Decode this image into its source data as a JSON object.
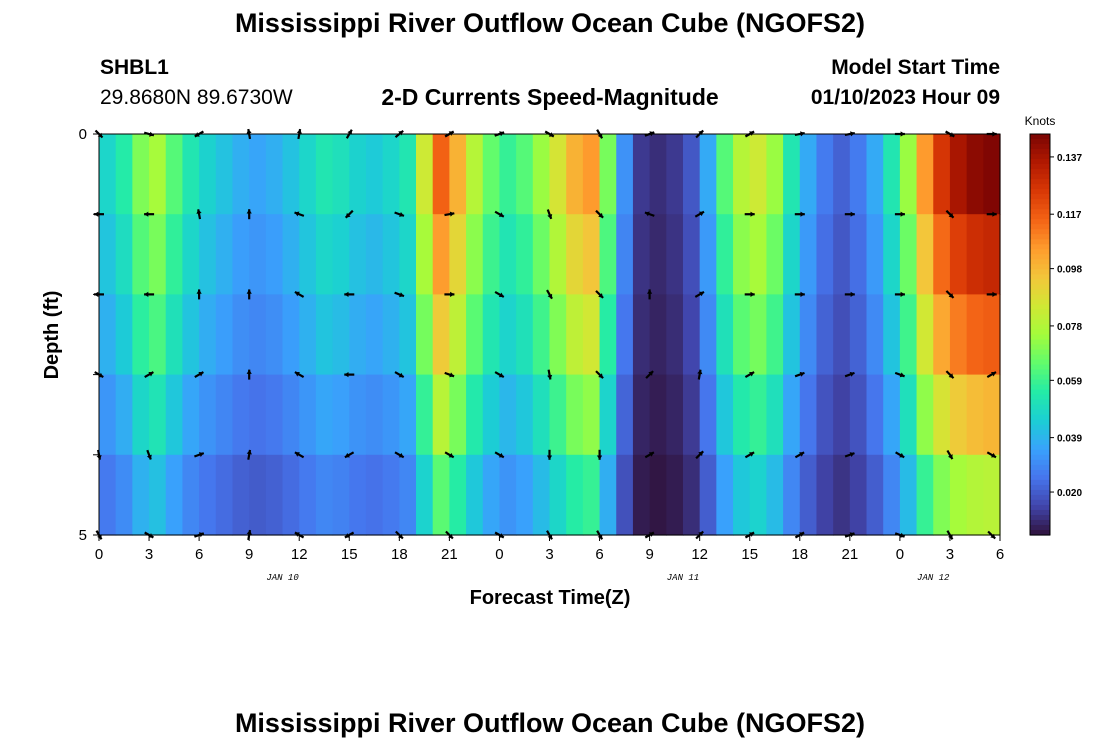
{
  "header": {
    "title": "Mississippi River Outflow Ocean Cube (NGOFS2)",
    "station_id": "SHBL1",
    "station_coords": "29.8680N  89.6730W",
    "product": "2-D Currents Speed-Magnitude",
    "model_start_label": "Model Start Time",
    "model_start_value": "01/10/2023 Hour 09"
  },
  "footer": {
    "title": "Mississippi River Outflow Ocean Cube (NGOFS2)"
  },
  "chart_data": {
    "type": "heatmap",
    "xlabel": "Forecast Time(Z)",
    "ylabel": "Depth (ft)",
    "x_tick_labels": [
      "0",
      "3",
      "6",
      "9",
      "12",
      "15",
      "18",
      "21",
      "0",
      "3",
      "6",
      "9",
      "12",
      "15",
      "18",
      "21",
      "0",
      "3",
      "6"
    ],
    "x_date_labels": [
      {
        "label": "JAN 10",
        "at_hour": 11
      },
      {
        "label": "JAN 11",
        "at_hour": 35
      },
      {
        "label": "JAN 12",
        "at_hour": 50
      }
    ],
    "xlim_hours": [
      0,
      54
    ],
    "y_tick_labels": [
      {
        "value": 0,
        "label": "0"
      },
      {
        "value": 1,
        "label": ""
      },
      {
        "value": 2,
        "label": ""
      },
      {
        "value": 3,
        "label": ""
      },
      {
        "value": 4,
        "label": ""
      },
      {
        "value": 5,
        "label": "5"
      }
    ],
    "ylim": [
      0,
      5
    ],
    "colorbar": {
      "unit": "Knots",
      "ticks": [
        0.137,
        0.117,
        0.098,
        0.078,
        0.059,
        0.039,
        0.02
      ],
      "range": [
        0.005,
        0.145
      ],
      "colors": [
        "#30123b",
        "#4145ab",
        "#4675ed",
        "#39a2fc",
        "#1bcfd4",
        "#24eca6",
        "#61fc6c",
        "#a4fc3b",
        "#d1e834",
        "#f3c63a",
        "#fe9b2d",
        "#f36315",
        "#d93806",
        "#b11901",
        "#7a0403"
      ]
    },
    "layer_depths": [
      0.5,
      1.5,
      2.5,
      3.5,
      4.5
    ],
    "speed_profile": [
      {
        "hour": 0,
        "speed": 0.045
      },
      {
        "hour": 1,
        "speed": 0.052
      },
      {
        "hour": 2,
        "speed": 0.066
      },
      {
        "hour": 3,
        "speed": 0.072
      },
      {
        "hour": 4,
        "speed": 0.06
      },
      {
        "hour": 5,
        "speed": 0.05
      },
      {
        "hour": 6,
        "speed": 0.044
      },
      {
        "hour": 7,
        "speed": 0.04
      },
      {
        "hour": 8,
        "speed": 0.036
      },
      {
        "hour": 9,
        "speed": 0.034
      },
      {
        "hour": 10,
        "speed": 0.036
      },
      {
        "hour": 11,
        "speed": 0.04
      },
      {
        "hour": 12,
        "speed": 0.045
      },
      {
        "hour": 13,
        "speed": 0.05
      },
      {
        "hour": 14,
        "speed": 0.048
      },
      {
        "hour": 15,
        "speed": 0.044
      },
      {
        "hour": 16,
        "speed": 0.042
      },
      {
        "hour": 17,
        "speed": 0.045
      },
      {
        "hour": 18,
        "speed": 0.05
      },
      {
        "hour": 19,
        "speed": 0.08
      },
      {
        "hour": 20,
        "speed": 0.11
      },
      {
        "hour": 21,
        "speed": 0.095
      },
      {
        "hour": 22,
        "speed": 0.075
      },
      {
        "hour": 23,
        "speed": 0.062
      },
      {
        "hour": 24,
        "speed": 0.055
      },
      {
        "hour": 25,
        "speed": 0.06
      },
      {
        "hour": 26,
        "speed": 0.07
      },
      {
        "hour": 27,
        "speed": 0.082
      },
      {
        "hour": 28,
        "speed": 0.095
      },
      {
        "hour": 29,
        "speed": 0.1
      },
      {
        "hour": 30,
        "speed": 0.065
      },
      {
        "hour": 31,
        "speed": 0.03
      },
      {
        "hour": 32,
        "speed": 0.012
      },
      {
        "hour": 33,
        "speed": 0.01
      },
      {
        "hour": 34,
        "speed": 0.012
      },
      {
        "hour": 35,
        "speed": 0.018
      },
      {
        "hour": 36,
        "speed": 0.035
      },
      {
        "hour": 37,
        "speed": 0.06
      },
      {
        "hour": 38,
        "speed": 0.075
      },
      {
        "hour": 39,
        "speed": 0.08
      },
      {
        "hour": 40,
        "speed": 0.07
      },
      {
        "hour": 41,
        "speed": 0.05
      },
      {
        "hour": 42,
        "speed": 0.035
      },
      {
        "hour": 43,
        "speed": 0.025
      },
      {
        "hour": 44,
        "speed": 0.02
      },
      {
        "hour": 45,
        "speed": 0.025
      },
      {
        "hour": 46,
        "speed": 0.035
      },
      {
        "hour": 47,
        "speed": 0.05
      },
      {
        "hour": 48,
        "speed": 0.07
      },
      {
        "hour": 49,
        "speed": 0.1
      },
      {
        "hour": 50,
        "speed": 0.12
      },
      {
        "hour": 51,
        "speed": 0.13
      },
      {
        "hour": 52,
        "speed": 0.135
      },
      {
        "hour": 53,
        "speed": 0.137
      },
      {
        "hour": 54,
        "speed": 0.137
      }
    ],
    "depth_factors": [
      1.05,
      0.95,
      0.85,
      0.72,
      0.58,
      0.45
    ],
    "vector_hours": [
      0,
      3,
      6,
      9,
      12,
      15,
      18,
      21,
      24,
      27,
      30,
      33,
      36,
      39,
      42,
      45,
      48,
      51,
      53.5
    ],
    "vector_angles_deg": [
      [
        -45,
        -15,
        210,
        100,
        80,
        60,
        40,
        30,
        20,
        -30,
        -60,
        20,
        45,
        30,
        10,
        10,
        0,
        -30,
        0
      ],
      [
        180,
        180,
        100,
        90,
        160,
        225,
        -20,
        10,
        -30,
        -70,
        -45,
        160,
        30,
        0,
        0,
        0,
        0,
        -45,
        0
      ],
      [
        180,
        180,
        90,
        90,
        150,
        180,
        -20,
        0,
        -30,
        -60,
        -45,
        90,
        30,
        0,
        0,
        0,
        0,
        -45,
        0
      ],
      [
        -30,
        30,
        30,
        90,
        150,
        180,
        -30,
        -20,
        -30,
        -80,
        -45,
        45,
        80,
        30,
        20,
        20,
        -20,
        -45,
        30
      ],
      [
        -80,
        -70,
        20,
        80,
        150,
        210,
        -30,
        -30,
        -30,
        -90,
        -90,
        30,
        45,
        30,
        30,
        20,
        -30,
        -60,
        -30
      ],
      [
        -60,
        -30,
        20,
        80,
        150,
        210,
        -45,
        -45,
        -30,
        -60,
        -60,
        30,
        45,
        30,
        30,
        20,
        -20,
        -60,
        -45
      ]
    ]
  }
}
